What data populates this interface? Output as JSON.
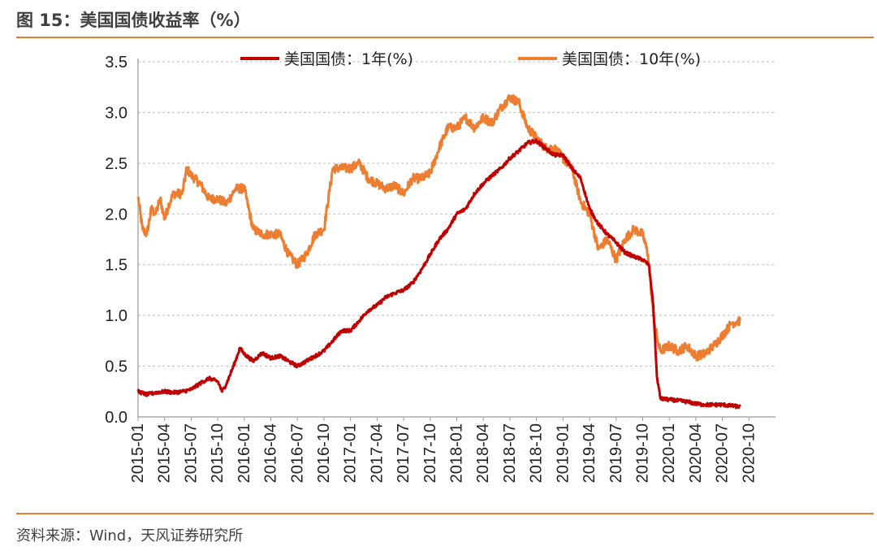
{
  "title": "图 15：美国国债收益率（%）",
  "source": "资料来源：Wind，天风证券研究所",
  "colors": {
    "accent": "#ED7D31",
    "series1": "#C00000",
    "series2": "#ED7D31",
    "grid": "#BFBFBF"
  },
  "chart_data": {
    "type": "line",
    "ylim": [
      0,
      3.5
    ],
    "yticks": [
      "0.0",
      "0.5",
      "1.0",
      "1.5",
      "2.0",
      "2.5",
      "3.0",
      "3.5"
    ],
    "xtick_labels": [
      "2015-01",
      "2015-04",
      "2015-07",
      "2015-10",
      "2016-01",
      "2016-04",
      "2016-07",
      "2016-10",
      "2017-01",
      "2017-04",
      "2017-07",
      "2017-10",
      "2018-01",
      "2018-04",
      "2018-07",
      "2018-10",
      "2019-01",
      "2019-04",
      "2019-07",
      "2019-10",
      "2020-01",
      "2020-04",
      "2020-07",
      "2020-10"
    ],
    "x_range_months": [
      0,
      72
    ],
    "grid": true,
    "legend_position": "top",
    "series": [
      {
        "name": "美国国债：1年(%)",
        "points": [
          [
            0,
            0.25
          ],
          [
            1,
            0.22
          ],
          [
            2,
            0.24
          ],
          [
            3,
            0.25
          ],
          [
            4,
            0.24
          ],
          [
            5,
            0.25
          ],
          [
            6,
            0.27
          ],
          [
            7,
            0.33
          ],
          [
            8,
            0.38
          ],
          [
            9,
            0.35
          ],
          [
            9.5,
            0.25
          ],
          [
            10,
            0.33
          ],
          [
            11,
            0.55
          ],
          [
            11.5,
            0.68
          ],
          [
            12,
            0.62
          ],
          [
            13,
            0.55
          ],
          [
            14,
            0.63
          ],
          [
            15,
            0.58
          ],
          [
            16,
            0.6
          ],
          [
            17,
            0.55
          ],
          [
            18,
            0.5
          ],
          [
            19,
            0.55
          ],
          [
            20,
            0.6
          ],
          [
            21,
            0.65
          ],
          [
            22,
            0.75
          ],
          [
            23,
            0.85
          ],
          [
            24,
            0.85
          ],
          [
            25,
            0.95
          ],
          [
            26,
            1.05
          ],
          [
            27,
            1.1
          ],
          [
            28,
            1.18
          ],
          [
            29,
            1.22
          ],
          [
            30,
            1.25
          ],
          [
            31,
            1.32
          ],
          [
            32,
            1.45
          ],
          [
            33,
            1.6
          ],
          [
            34,
            1.75
          ],
          [
            35,
            1.85
          ],
          [
            36,
            2.0
          ],
          [
            37,
            2.05
          ],
          [
            38,
            2.2
          ],
          [
            39,
            2.3
          ],
          [
            40,
            2.38
          ],
          [
            41,
            2.45
          ],
          [
            42,
            2.55
          ],
          [
            43,
            2.62
          ],
          [
            44,
            2.7
          ],
          [
            45,
            2.72
          ],
          [
            46,
            2.65
          ],
          [
            47,
            2.58
          ],
          [
            48,
            2.58
          ],
          [
            49,
            2.45
          ],
          [
            50,
            2.35
          ],
          [
            51,
            2.05
          ],
          [
            52,
            1.9
          ],
          [
            53,
            1.8
          ],
          [
            54,
            1.72
          ],
          [
            55,
            1.62
          ],
          [
            56,
            1.58
          ],
          [
            57,
            1.55
          ],
          [
            57.7,
            1.5
          ],
          [
            58.2,
            1.1
          ],
          [
            58.6,
            0.4
          ],
          [
            59,
            0.18
          ],
          [
            60,
            0.17
          ],
          [
            61,
            0.16
          ],
          [
            62,
            0.15
          ],
          [
            63,
            0.13
          ],
          [
            64,
            0.12
          ],
          [
            65,
            0.12
          ],
          [
            66,
            0.12
          ],
          [
            67,
            0.11
          ],
          [
            68,
            0.1
          ]
        ]
      },
      {
        "name": "美国国债：10年(%)",
        "points": [
          [
            0,
            2.17
          ],
          [
            0.5,
            1.85
          ],
          [
            1,
            1.8
          ],
          [
            1.5,
            2.05
          ],
          [
            2,
            2.0
          ],
          [
            2.5,
            2.15
          ],
          [
            3,
            1.95
          ],
          [
            3.5,
            2.1
          ],
          [
            4,
            2.2
          ],
          [
            5,
            2.2
          ],
          [
            5.5,
            2.45
          ],
          [
            6,
            2.38
          ],
          [
            7,
            2.3
          ],
          [
            8,
            2.15
          ],
          [
            9,
            2.15
          ],
          [
            10,
            2.1
          ],
          [
            11,
            2.25
          ],
          [
            12,
            2.25
          ],
          [
            13,
            1.85
          ],
          [
            14,
            1.8
          ],
          [
            15,
            1.8
          ],
          [
            16,
            1.8
          ],
          [
            17,
            1.6
          ],
          [
            18,
            1.5
          ],
          [
            19,
            1.6
          ],
          [
            20,
            1.8
          ],
          [
            21,
            1.85
          ],
          [
            22,
            2.45
          ],
          [
            23,
            2.45
          ],
          [
            24,
            2.45
          ],
          [
            25,
            2.5
          ],
          [
            26,
            2.35
          ],
          [
            27,
            2.3
          ],
          [
            28,
            2.25
          ],
          [
            29,
            2.28
          ],
          [
            30,
            2.2
          ],
          [
            31,
            2.35
          ],
          [
            32,
            2.35
          ],
          [
            33,
            2.4
          ],
          [
            34,
            2.65
          ],
          [
            35,
            2.85
          ],
          [
            36,
            2.85
          ],
          [
            37,
            2.95
          ],
          [
            38,
            2.85
          ],
          [
            39,
            2.95
          ],
          [
            40,
            2.9
          ],
          [
            41,
            3.05
          ],
          [
            42,
            3.15
          ],
          [
            43,
            3.1
          ],
          [
            44,
            2.85
          ],
          [
            45,
            2.75
          ],
          [
            46,
            2.65
          ],
          [
            47,
            2.65
          ],
          [
            48,
            2.55
          ],
          [
            49,
            2.45
          ],
          [
            50,
            2.12
          ],
          [
            51,
            2.0
          ],
          [
            52,
            1.65
          ],
          [
            53,
            1.75
          ],
          [
            54,
            1.55
          ],
          [
            55,
            1.75
          ],
          [
            56,
            1.85
          ],
          [
            57,
            1.8
          ],
          [
            57.6,
            1.6
          ],
          [
            58.2,
            1.0
          ],
          [
            58.8,
            0.7
          ],
          [
            59,
            0.65
          ],
          [
            60,
            0.7
          ],
          [
            61,
            0.65
          ],
          [
            62,
            0.7
          ],
          [
            63,
            0.6
          ],
          [
            64,
            0.62
          ],
          [
            65,
            0.7
          ],
          [
            66,
            0.8
          ],
          [
            67,
            0.92
          ],
          [
            68,
            0.95
          ]
        ]
      }
    ]
  }
}
